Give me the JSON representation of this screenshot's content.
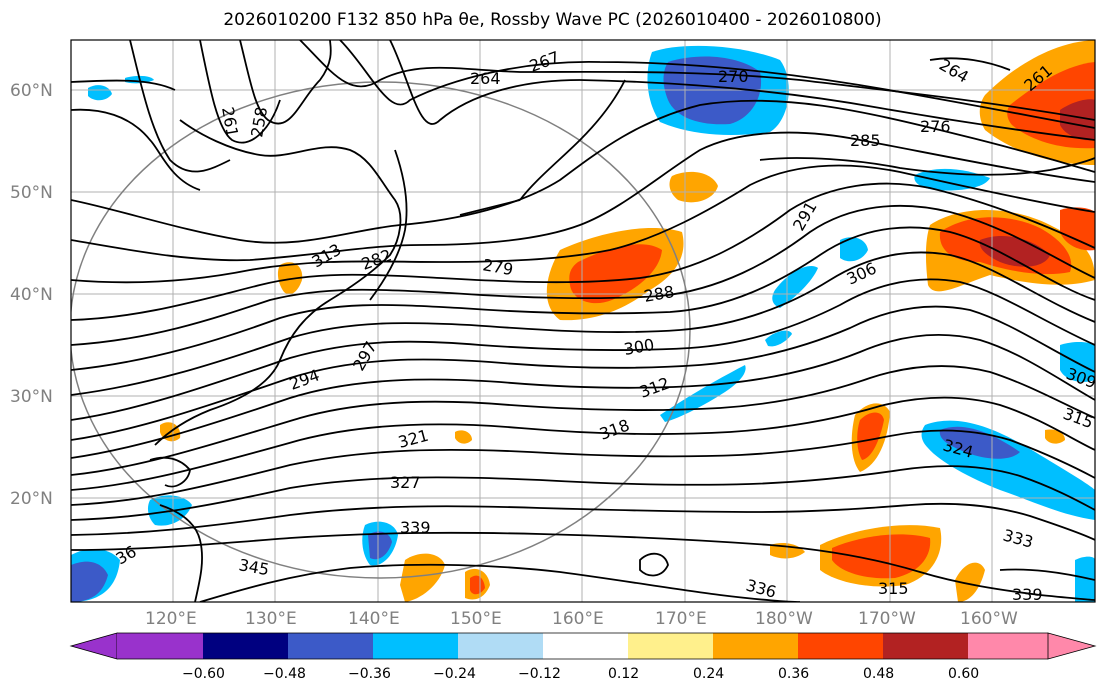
{
  "title": "2026010200 F132 850 hPa θe, Rossby Wave PC (2026010400 - 2026010800)",
  "colors": {
    "neg_060": "#9932cc",
    "neg_048": "#000080",
    "neg_036": "#3c5ac8",
    "neg_024": "#00bfff",
    "neg_012": "#b0dcf5",
    "zero": "#ffffff",
    "pos_012": "#fff08c",
    "pos_024": "#ffa500",
    "pos_036": "#ff4500",
    "pos_048": "#b22222",
    "pos_060": "#ff88aa"
  },
  "lat_labels": [
    "60°N",
    "50°N",
    "40°N",
    "30°N",
    "20°N"
  ],
  "lon_labels": [
    "120°E",
    "130°E",
    "140°E",
    "150°E",
    "160°E",
    "170°E",
    "180°W",
    "170°W",
    "160°W"
  ],
  "colorbar_ticks": [
    "−0.60",
    "−0.48",
    "−0.36",
    "−0.24",
    "−0.12",
    "0.12",
    "0.24",
    "0.36",
    "0.48",
    "0.60"
  ],
  "contour_labels": [
    "264",
    "267",
    "270",
    "276",
    "285",
    "261",
    "258",
    "313",
    "282",
    "279",
    "288",
    "291",
    "306",
    "300",
    "294",
    "297",
    "312",
    "318",
    "321",
    "327",
    "339",
    "345",
    "315",
    "324",
    "309",
    "333",
    "336",
    "339",
    "315",
    "36",
    "264",
    "261"
  ]
}
